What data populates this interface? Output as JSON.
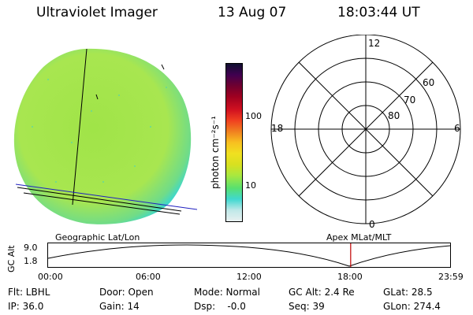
{
  "header": {
    "instrument": "Ultraviolet Imager",
    "date": "13 Aug 07",
    "time": "18:03:44 UT"
  },
  "colorbar": {
    "unit_label": "photon cm⁻²s⁻¹",
    "tick_high": "100",
    "tick_low": "10",
    "colors": [
      "#e8f0f0",
      "#c0e8e8",
      "#40d8d0",
      "#58e070",
      "#a8e840",
      "#d8e020",
      "#f0e020",
      "#f8c020",
      "#f08020",
      "#f04020",
      "#d01020",
      "#a00020",
      "#700030",
      "#400050",
      "#101030"
    ]
  },
  "image_panel": {
    "fill_color": "#a6e44e",
    "frame_label": "Geographic Lat/Lon"
  },
  "polar_panel": {
    "frame_label": "Apex MLat/MLT",
    "mlt_labels": {
      "top": "12",
      "left": "18",
      "right": "6",
      "bottom": "0"
    },
    "lat_labels": [
      "60",
      "70",
      "80"
    ]
  },
  "altitude_plot": {
    "ylabel": "GC Alt",
    "y_ticks": [
      "9.0",
      "1.8"
    ],
    "x_ticks": [
      "00:00",
      "06:00",
      "12:00",
      "18:00",
      "23:59"
    ],
    "marker_time": "18:03:44",
    "marker_color": "#c00000"
  },
  "status": {
    "filter": "Flt: LBHL",
    "door": "Door: Open",
    "mode": "Mode: Normal",
    "gc_alt": "GC Alt: 2.4 Re",
    "glat": "GLat:  28.5",
    "ip": "IP: 36.0",
    "gain": "Gain: 14",
    "dsp": "Dsp:    -0.0",
    "seq": "Seq: 39",
    "glon": "GLon: 274.4"
  }
}
